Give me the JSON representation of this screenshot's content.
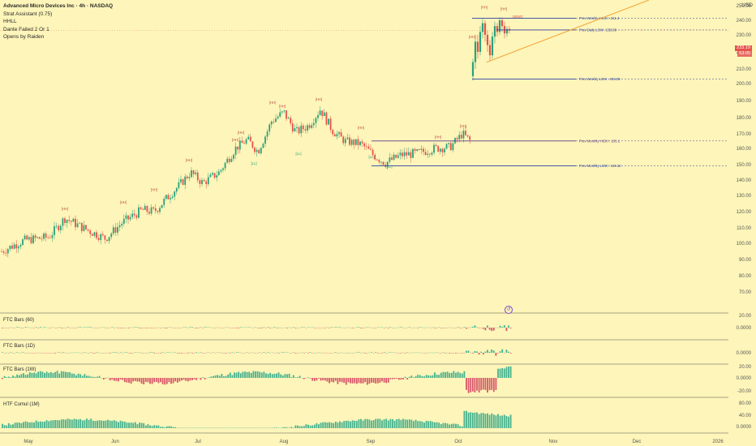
{
  "legend": {
    "title": "Advanced Micro Devices Inc · 4h · NASDAQ",
    "lines": [
      "Strat Assistant (0.75)",
      "HHLL",
      "Dante Failed 2 Or 1",
      "Opens by Raiden"
    ]
  },
  "currency": "USD",
  "price_axis": [
    "250.00",
    "240.00",
    "230.00",
    "220.00",
    "210.00",
    "200.00",
    "190.00",
    "180.00",
    "170.00",
    "160.00",
    "150.00",
    "140.00",
    "130.00",
    "120.00",
    "110.00",
    "100.00",
    "90.00",
    "80.00",
    "70.00"
  ],
  "current_price": "233.19",
  "countdown": "53:05",
  "time_axis": [
    "May",
    "Jun",
    "Jul",
    "Aug",
    "Sep",
    "Oct",
    "Nov",
    "Dec",
    "2026"
  ],
  "levels": {
    "prev_weekly_high": "Prev Weekly HIGH : 241.4",
    "prev_daily_low": "Prev Daily LOW : 233.38",
    "prev_weekly_low": "Prev Weekly LOW : 203.09",
    "prev_monthly_high": "Prev Monthly HIGH : 165.1",
    "prev_monthly_low": "Prev Monthly LOW : 149.22"
  },
  "annotations": {
    "hh": "[HH]",
    "ll": "[LL]",
    "hl": "[HL]",
    "lh": "[LH]",
    "bwc": "DBWC"
  },
  "history_marker": "↺",
  "panes": [
    {
      "label": "FTC Bars (60)",
      "axis": [
        "20.00",
        "0.0000"
      ]
    },
    {
      "label": "FTC Bars (1D)",
      "axis": [
        "0.0000"
      ]
    },
    {
      "label": "FTC Bars (1W)",
      "axis": [
        "20.00",
        "0.0000",
        "-20.00"
      ]
    },
    {
      "label": "HTF Cumul (1M)",
      "axis": [
        "80.00",
        "40.00",
        "0.0000"
      ]
    }
  ],
  "colors": {
    "background": "#fdf5b9",
    "up": "#2aa17b",
    "down": "#e5534b",
    "level_blue": "#2b3fa8",
    "level_purple": "#5b3c91",
    "trend_orange": "#f3a53a",
    "histo_up": "#45b28f",
    "histo_down": "#d8576b"
  }
}
